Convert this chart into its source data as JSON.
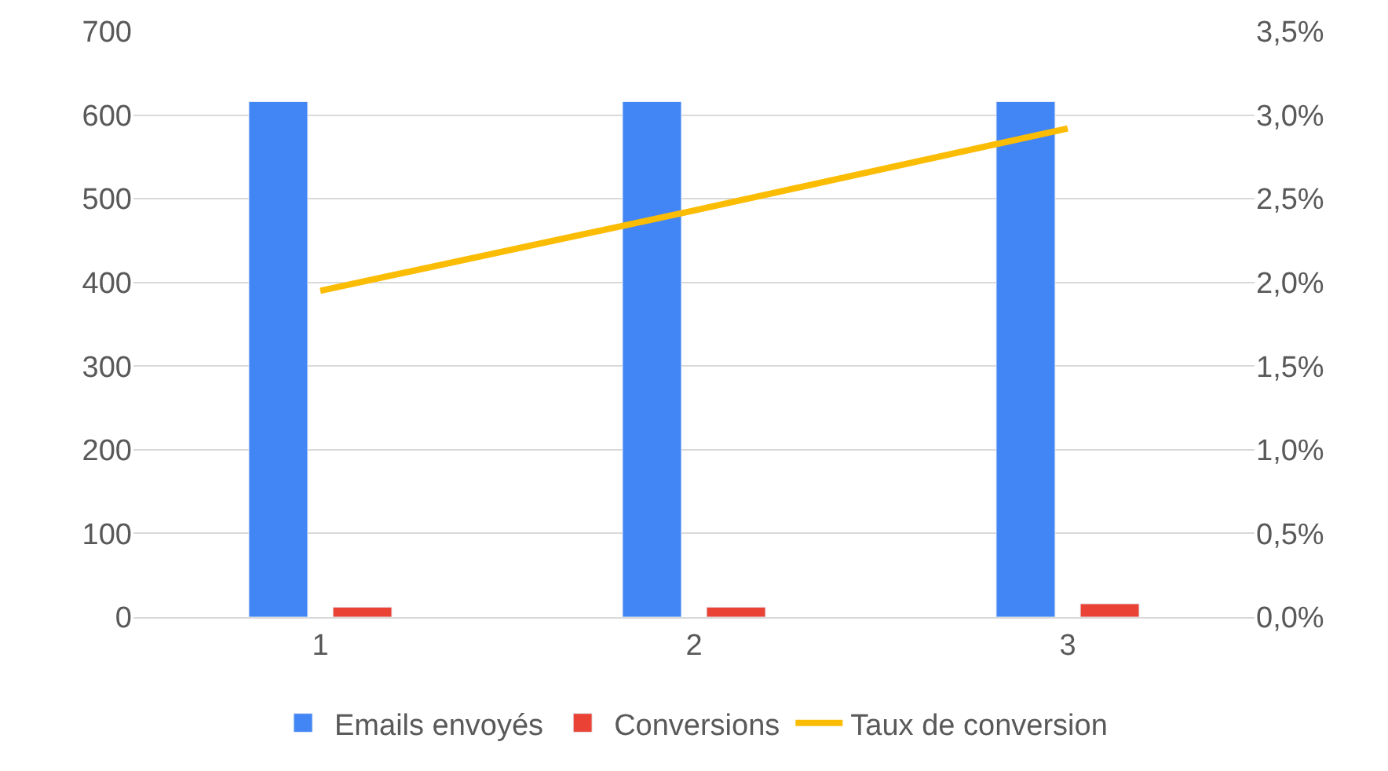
{
  "chart_data": {
    "type": "bar",
    "categories": [
      "1",
      "2",
      "3"
    ],
    "series": [
      {
        "name": "Emails envoyés",
        "color": "#4285f4",
        "values": [
          616,
          616,
          616
        ]
      },
      {
        "name": "Conversions",
        "color": "#ea4335",
        "values": [
          12,
          12,
          16
        ]
      },
      {
        "name": "Taux de conversion",
        "color": "#fbbc04",
        "type": "line",
        "axis": "y2",
        "values": [
          1.95,
          2.43,
          2.92
        ]
      }
    ],
    "ylim": [
      0,
      700
    ],
    "yticks": [
      0,
      100,
      200,
      300,
      400,
      500,
      600,
      700
    ],
    "y2lim": [
      0,
      3.5
    ],
    "y2ticks": [
      {
        "value": 0,
        "label": "0,0%"
      },
      {
        "value": 0.5,
        "label": "0,5%"
      },
      {
        "value": 1,
        "label": "1,0%"
      },
      {
        "value": 1.5,
        "label": "1,5%"
      },
      {
        "value": 2,
        "label": "2,0%"
      },
      {
        "value": 2.5,
        "label": "2,5%"
      },
      {
        "value": 3,
        "label": "3,0%"
      },
      {
        "value": 3.5,
        "label": "3,5%"
      }
    ],
    "grid": "y",
    "legend": "bottom",
    "marker": "none"
  }
}
